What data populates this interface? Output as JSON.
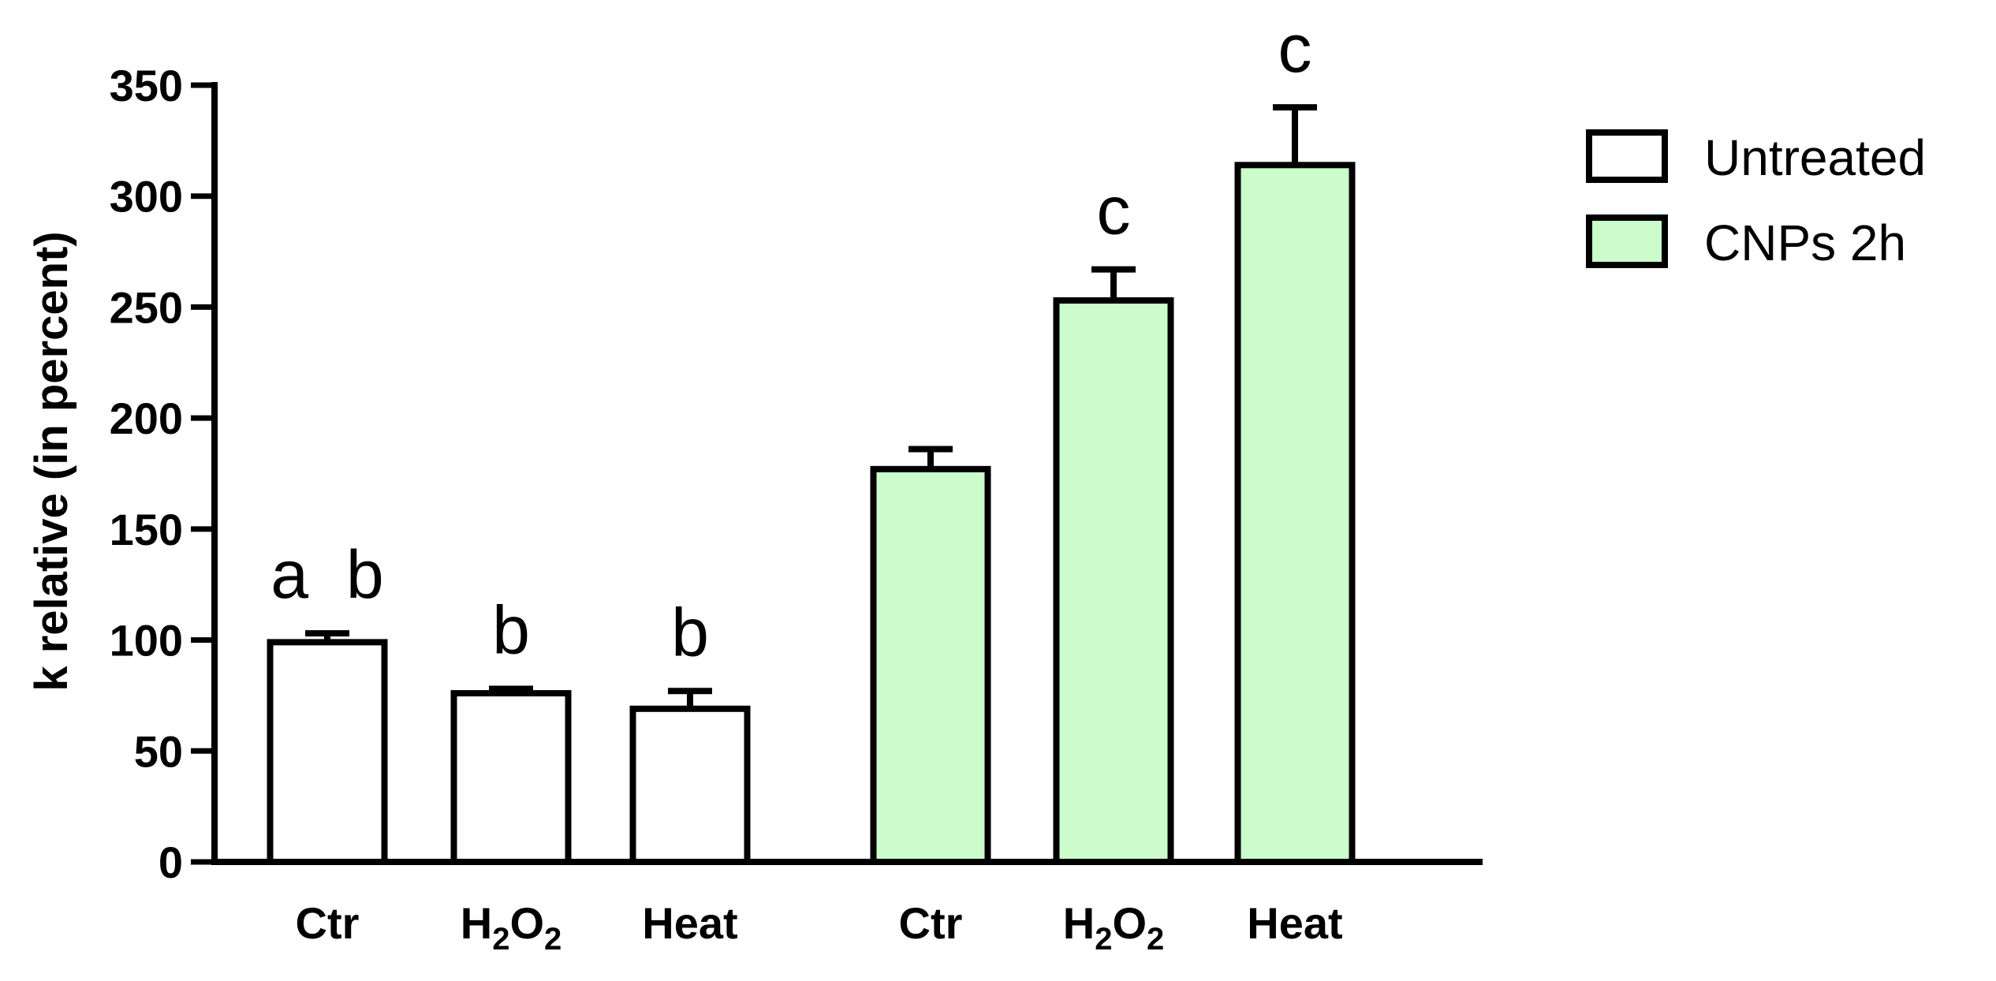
{
  "chart_data": {
    "type": "bar",
    "xlabel": "",
    "ylabel": "k relative (in percent)",
    "ylim": [
      0,
      350
    ],
    "yticks": [
      0,
      50,
      100,
      150,
      200,
      250,
      300,
      350
    ],
    "grid": false,
    "legend_position": "top-right",
    "groups": [
      {
        "name": "Untreated",
        "color": "#ffffff",
        "bars": [
          {
            "category": "Ctr",
            "value": 99,
            "error": 4,
            "sig": "a  b"
          },
          {
            "category": "H2O2",
            "value": 76,
            "error": 2,
            "sig": "b"
          },
          {
            "category": "Heat",
            "value": 69,
            "error": 8,
            "sig": "b"
          }
        ]
      },
      {
        "name": "CNPs 2h",
        "color": "#ccfccc",
        "bars": [
          {
            "category": "Ctr",
            "value": 177,
            "error": 9,
            "sig": ""
          },
          {
            "category": "H2O2",
            "value": 253,
            "error": 14,
            "sig": "c"
          },
          {
            "category": "Heat",
            "value": 314,
            "error": 26,
            "sig": "c"
          }
        ]
      }
    ]
  }
}
